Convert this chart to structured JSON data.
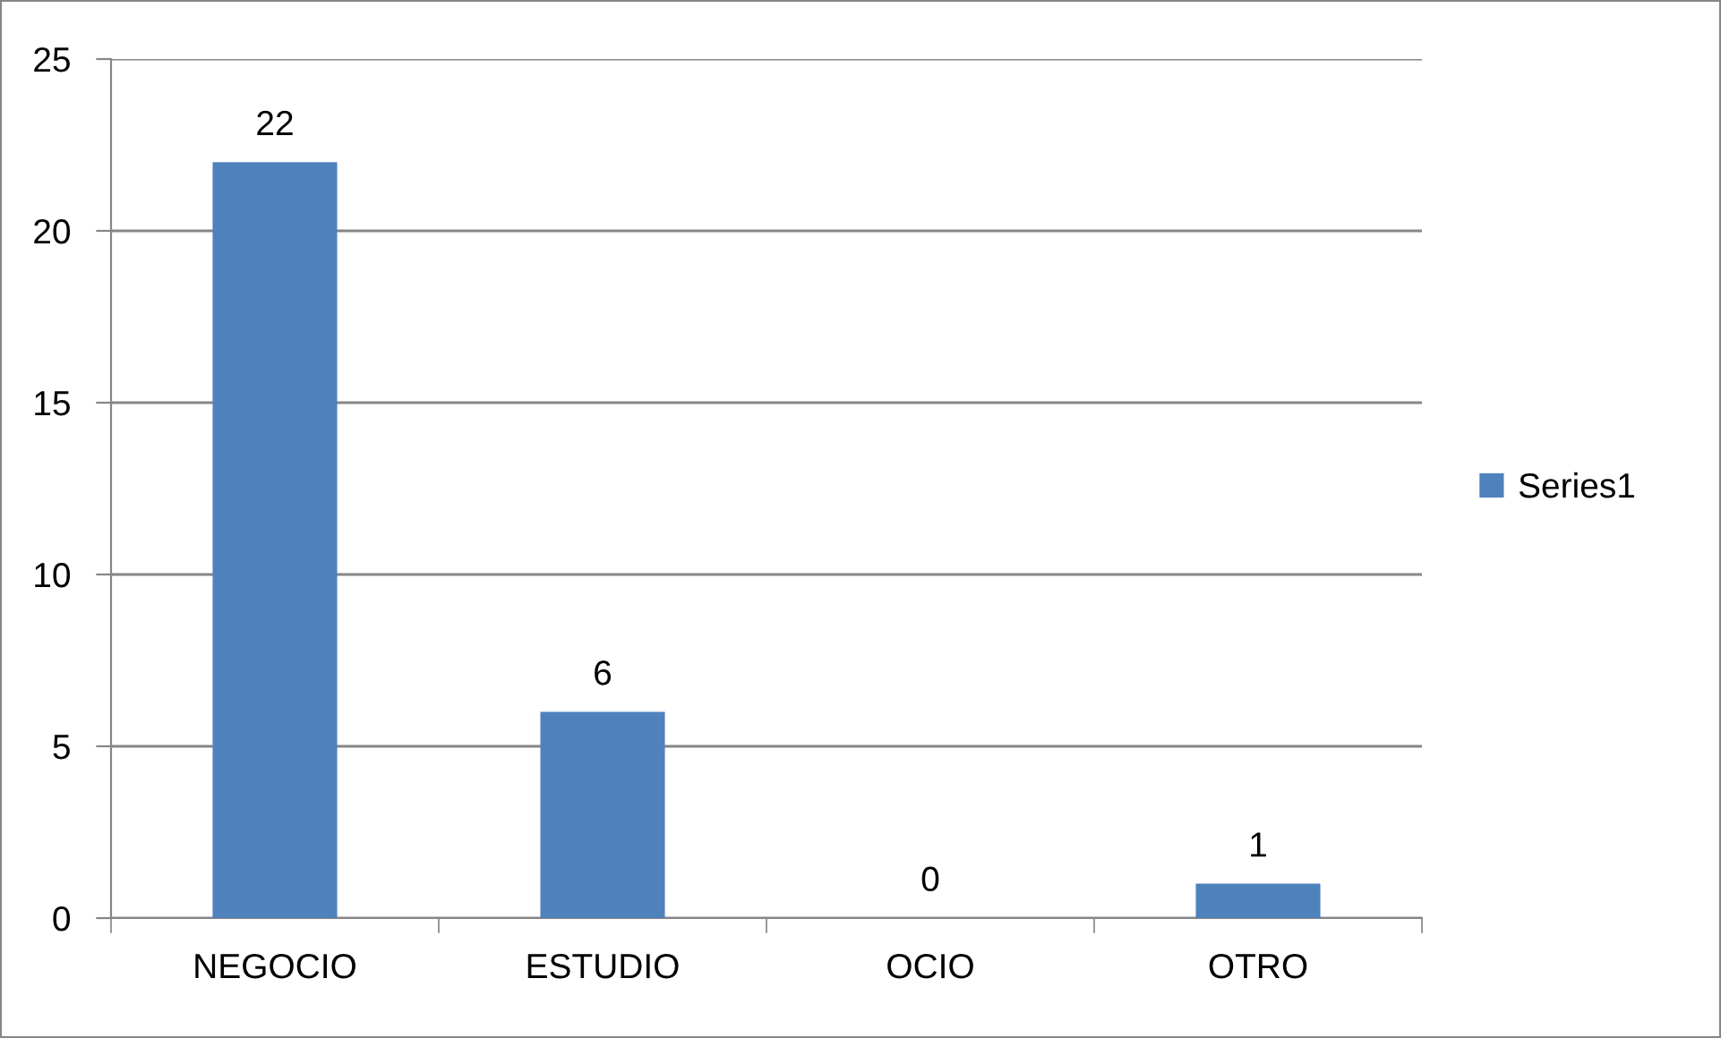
{
  "chart_data": {
    "type": "bar",
    "categories": [
      "NEGOCIO",
      "ESTUDIO",
      "OCIO",
      "OTRO"
    ],
    "series": [
      {
        "name": "Series1",
        "color": "#4f81bd",
        "values": [
          22,
          6,
          0,
          1
        ]
      }
    ],
    "ylim": [
      0,
      25
    ],
    "yticks": [
      0,
      5,
      10,
      15,
      20,
      25
    ],
    "grid": "y",
    "legend": "right",
    "data_labels": true
  }
}
